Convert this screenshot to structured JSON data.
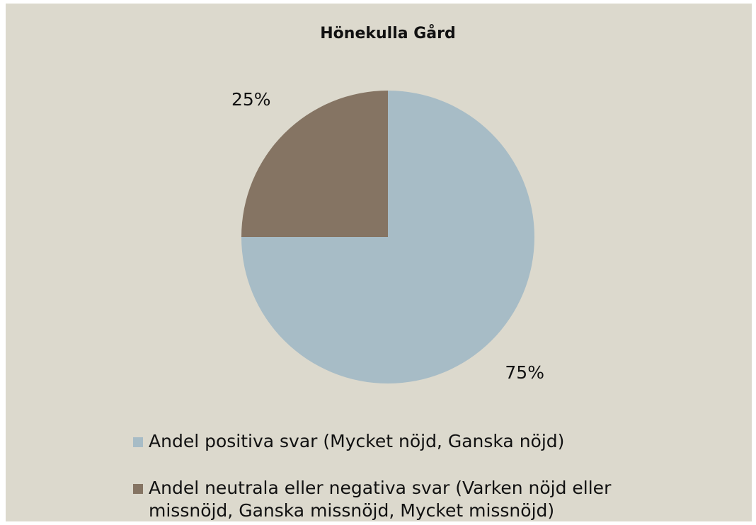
{
  "chart_data": {
    "type": "pie",
    "title": "Hönekulla Gård",
    "categories": [
      "Andel positiva svar (Mycket nöjd, Ganska nöjd)",
      "Andel neutrala eller negativa svar (Varken nöjd eller missnöjd, Ganska missnöjd, Mycket missnöjd)"
    ],
    "values": [
      75,
      25
    ],
    "value_labels": [
      "75%",
      "25%"
    ],
    "colors": [
      "#a7bcc6",
      "#857463"
    ]
  }
}
